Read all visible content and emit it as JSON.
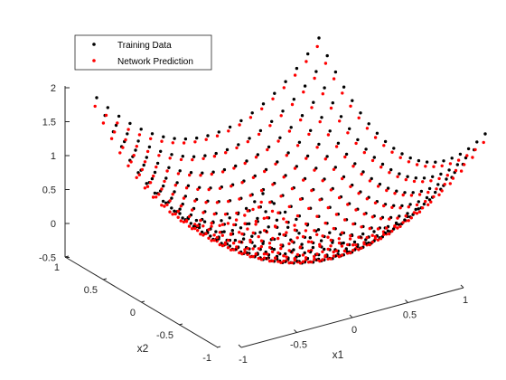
{
  "chart_data": {
    "type": "scatter",
    "title": "",
    "xlabel": "x1",
    "ylabel": "x2",
    "zlabel": "",
    "xlim": [
      -1,
      1
    ],
    "ylim": [
      -1,
      1
    ],
    "zlim": [
      -0.5,
      2
    ],
    "x_ticks": [
      "-1",
      "-0.5",
      "0",
      "0.5",
      "1"
    ],
    "y_ticks": [
      "-1",
      "-0.5",
      "0",
      "0.5",
      "1"
    ],
    "z_ticks": [
      "-0.5",
      "0",
      "0.5",
      "1",
      "1.5",
      "2"
    ],
    "grid": false,
    "legend_position": "top-left",
    "x_grid": [
      -1,
      -0.9,
      -0.8,
      -0.7,
      -0.6,
      -0.5,
      -0.4,
      -0.3,
      -0.2,
      -0.1,
      0,
      0.1,
      0.2,
      0.3,
      0.4,
      0.5,
      0.6,
      0.7,
      0.8,
      0.9,
      1
    ],
    "y_grid": [
      -1,
      -0.9,
      -0.8,
      -0.7,
      -0.6,
      -0.5,
      -0.4,
      -0.3,
      -0.2,
      -0.1,
      0,
      0.1,
      0.2,
      0.3,
      0.4,
      0.5,
      0.6,
      0.7,
      0.8,
      0.9,
      1
    ],
    "series": [
      {
        "name": "Training Data",
        "color": "#000000",
        "z_formula": "x1^2 + x2^2"
      },
      {
        "name": "Network Prediction",
        "color": "#ff0000",
        "z_formula": "approx. x1^2 + x2^2 (slightly below training data)"
      }
    ]
  }
}
